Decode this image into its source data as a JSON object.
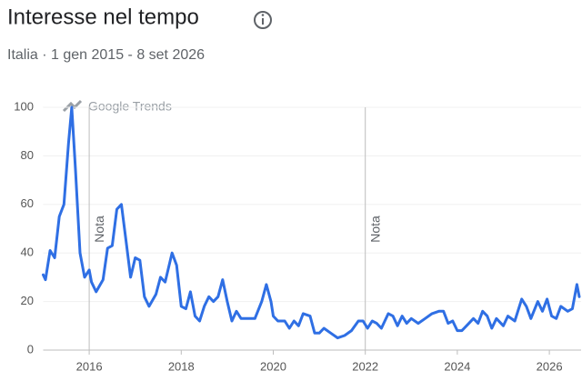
{
  "chart_data": {
    "type": "line",
    "title": "Interesse nel tempo",
    "subtitle": "Italia · 1 gen 2015 - 8 set 2026",
    "watermark": "Google Trends",
    "color": "#2f6fe4",
    "x": [
      2015.0,
      2015.05,
      2015.15,
      2015.25,
      2015.35,
      2015.45,
      2015.55,
      2015.62,
      2015.7,
      2015.8,
      2015.9,
      2016.0,
      2016.05,
      2016.15,
      2016.3,
      2016.4,
      2016.5,
      2016.6,
      2016.7,
      2016.8,
      2016.9,
      2017.0,
      2017.1,
      2017.2,
      2017.3,
      2017.45,
      2017.55,
      2017.65,
      2017.8,
      2017.9,
      2018.0,
      2018.1,
      2018.2,
      2018.3,
      2018.4,
      2018.5,
      2018.6,
      2018.7,
      2018.8,
      2018.9,
      2019.0,
      2019.1,
      2019.2,
      2019.3,
      2019.5,
      2019.6,
      2019.75,
      2019.85,
      2019.95,
      2020.0,
      2020.1,
      2020.25,
      2020.35,
      2020.45,
      2020.55,
      2020.65,
      2020.8,
      2020.9,
      2021.0,
      2021.1,
      2021.25,
      2021.4,
      2021.55,
      2021.7,
      2021.85,
      2021.95,
      2022.05,
      2022.15,
      2022.25,
      2022.35,
      2022.5,
      2022.6,
      2022.7,
      2022.8,
      2022.9,
      2023.0,
      2023.15,
      2023.3,
      2023.45,
      2023.6,
      2023.7,
      2023.8,
      2023.9,
      2024.0,
      2024.1,
      2024.2,
      2024.35,
      2024.45,
      2024.55,
      2024.65,
      2024.75,
      2024.85,
      2025.0,
      2025.1,
      2025.25,
      2025.4,
      2025.5,
      2025.6,
      2025.75,
      2025.85,
      2025.95,
      2026.05,
      2026.15,
      2026.25,
      2026.4,
      2026.5,
      2026.6,
      2026.65
    ],
    "values": [
      31,
      29,
      41,
      38,
      55,
      60,
      85,
      100,
      75,
      40,
      30,
      33,
      28,
      24,
      29,
      42,
      43,
      58,
      60,
      45,
      30,
      38,
      37,
      22,
      18,
      23,
      30,
      28,
      40,
      35,
      18,
      17,
      24,
      14,
      12,
      18,
      22,
      20,
      22,
      29,
      20,
      12,
      16,
      13,
      13,
      13,
      20,
      27,
      20,
      14,
      12,
      12,
      9,
      12,
      10,
      15,
      14,
      7,
      7,
      9,
      7,
      5,
      6,
      8,
      12,
      12,
      9,
      12,
      11,
      9,
      15,
      14,
      10,
      14,
      11,
      13,
      11,
      13,
      15,
      16,
      16,
      11,
      12,
      8,
      8,
      10,
      13,
      11,
      16,
      14,
      9,
      13,
      10,
      14,
      12,
      21,
      18,
      13,
      20,
      16,
      21,
      14,
      13,
      18,
      16,
      17,
      27,
      22
    ],
    "xlim": [
      2015,
      2026.69
    ],
    "xticks": [
      2016,
      2018,
      2020,
      2022,
      2024,
      2026
    ],
    "ylim": [
      0,
      100
    ],
    "yticks": [
      0,
      20,
      40,
      60,
      80,
      100
    ],
    "annotations": [
      {
        "x": 2016,
        "label": "Nota"
      },
      {
        "x": 2022,
        "label": "Nota"
      }
    ]
  }
}
